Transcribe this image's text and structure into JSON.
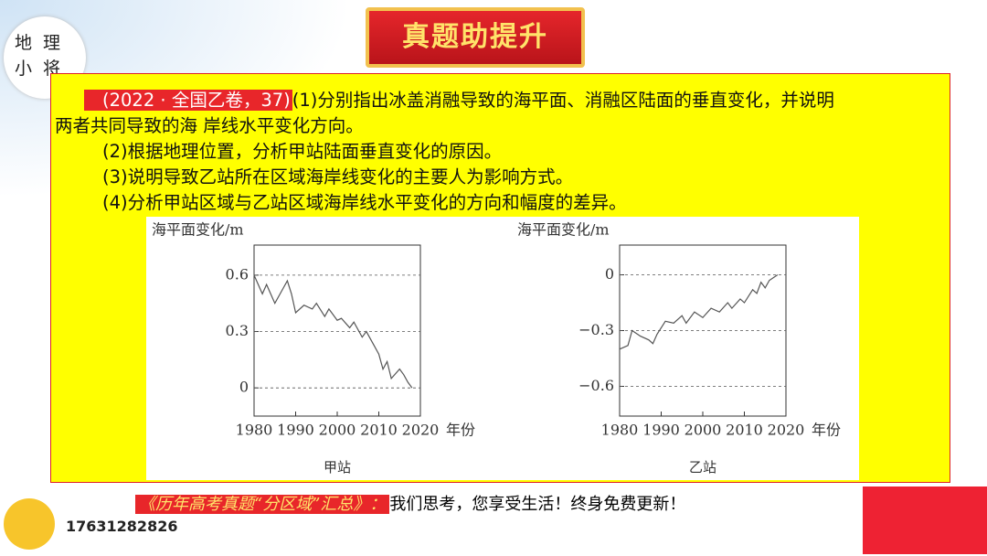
{
  "logo": {
    "line1": "地理",
    "line2": "小将"
  },
  "banner": "真题助提升",
  "question": {
    "source": "(2022 · 全国乙卷，37)",
    "lines": [
      "(1)分别指出冰盖消融导致的海平面、消融区陆面的垂直变化，并说明",
      "两者共同导致的海 岸线水平变化方向。",
      "(2)根据地理位置，分析甲站陆面垂直变化的原因。",
      "(3)说明导致乙站所在区域海岸线变化的主要人为影响方式。",
      "(4)分析甲站区域与乙站区域海岸线水平变化的方向和幅度的差异。"
    ]
  },
  "chart_data": [
    {
      "type": "line",
      "title": "甲站",
      "y_label": "海平面变化/m",
      "x_label": "年份",
      "x": [
        1980,
        1981,
        1982,
        1983,
        1984,
        1985,
        1987,
        1988,
        1989,
        1990,
        1992,
        1994,
        1995,
        1997,
        1998,
        2000,
        2001,
        2003,
        2004,
        2006,
        2007,
        2009,
        2010,
        2011,
        2012,
        2013,
        2015,
        2016,
        2017,
        2018
      ],
      "values": [
        0.6,
        0.55,
        0.5,
        0.55,
        0.5,
        0.45,
        0.53,
        0.57,
        0.5,
        0.4,
        0.44,
        0.42,
        0.45,
        0.38,
        0.42,
        0.36,
        0.37,
        0.32,
        0.35,
        0.27,
        0.3,
        0.22,
        0.18,
        0.1,
        0.14,
        0.05,
        0.1,
        0.07,
        0.03,
        0
      ],
      "color": "#555555",
      "xlim": [
        1980,
        2020
      ],
      "ylim": [
        -0.15,
        0.76
      ],
      "xticks": [
        1980,
        1990,
        2000,
        2010,
        2020
      ],
      "yticks": [
        0,
        0.3,
        0.6
      ],
      "grid": true
    },
    {
      "type": "line",
      "title": "乙站",
      "y_label": "海平面变化/m",
      "x_label": "年份",
      "x": [
        1980,
        1982,
        1983,
        1985,
        1987,
        1988,
        1989,
        1991,
        1993,
        1995,
        1996,
        1998,
        2000,
        2002,
        2004,
        2006,
        2007,
        2009,
        2010,
        2012,
        2013,
        2014,
        2015,
        2016,
        2018
      ],
      "values": [
        -0.4,
        -0.38,
        -0.3,
        -0.33,
        -0.35,
        -0.37,
        -0.32,
        -0.25,
        -0.26,
        -0.22,
        -0.26,
        -0.2,
        -0.23,
        -0.18,
        -0.2,
        -0.15,
        -0.18,
        -0.13,
        -0.15,
        -0.08,
        -0.1,
        -0.04,
        -0.07,
        -0.03,
        0
      ],
      "color": "#555555",
      "xlim": [
        1980,
        2020
      ],
      "ylim": [
        -0.76,
        0.16
      ],
      "xticks": [
        1980,
        1990,
        2000,
        2010,
        2020
      ],
      "yticks": [
        {
          "value": -0.6,
          "label": "−0.6"
        },
        {
          "value": -0.3,
          "label": "−0.3"
        },
        0
      ],
      "grid": true
    }
  ],
  "footer": {
    "series_title": "《历年高考真题“分区域”汇总》：",
    "slogan": "我们思考，您享受生活！终身免费更新！",
    "phone": "17631282826"
  }
}
